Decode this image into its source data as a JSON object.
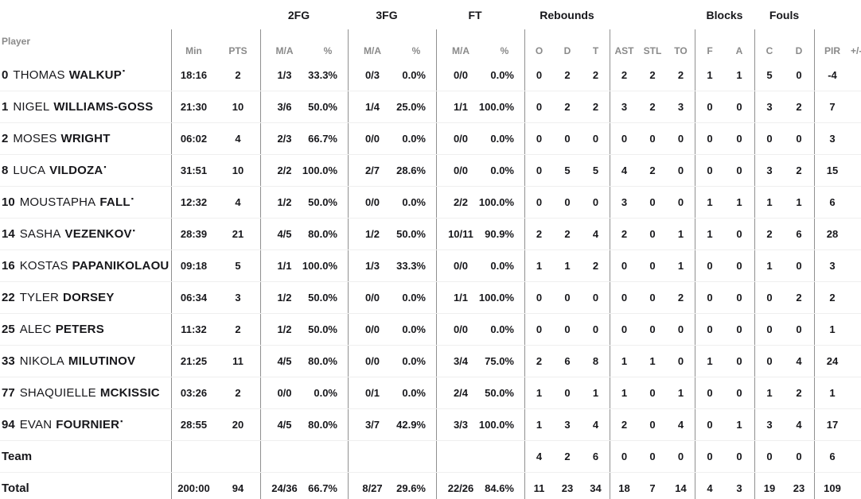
{
  "table": {
    "group_headers": {
      "fg2": "2FG",
      "fg3": "3FG",
      "ft": "FT",
      "rebounds": "Rebounds",
      "blocks": "Blocks",
      "fouls": "Fouls"
    },
    "columns": {
      "player": "Player",
      "min": "Min",
      "pts": "PTS",
      "ma": "M/A",
      "pct": "%",
      "o": "O",
      "d": "D",
      "t": "T",
      "ast": "AST",
      "stl": "STL",
      "to": "TO",
      "f": "F",
      "a": "A",
      "c": "C",
      "pir": "PIR",
      "plusminus": "+/-"
    },
    "starter_marker": "▪",
    "rows": [
      {
        "type": "player",
        "number": "0",
        "first": "THOMAS",
        "last": "WALKUP",
        "starter": true,
        "min": "18:16",
        "pts": "2",
        "fg2_ma": "1/3",
        "fg2_pct": "33.3%",
        "fg3_ma": "0/3",
        "fg3_pct": "0.0%",
        "ft_ma": "0/0",
        "ft_pct": "0.0%",
        "reb_o": "0",
        "reb_d": "2",
        "reb_t": "2",
        "ast": "2",
        "stl": "2",
        "to": "2",
        "blk_f": "1",
        "blk_a": "1",
        "foul_c": "5",
        "foul_d": "0",
        "pir": "-4"
      },
      {
        "type": "player",
        "number": "1",
        "first": "NIGEL",
        "last": "WILLIAMS-GOSS",
        "starter": false,
        "min": "21:30",
        "pts": "10",
        "fg2_ma": "3/6",
        "fg2_pct": "50.0%",
        "fg3_ma": "1/4",
        "fg3_pct": "25.0%",
        "ft_ma": "1/1",
        "ft_pct": "100.0%",
        "reb_o": "0",
        "reb_d": "2",
        "reb_t": "2",
        "ast": "3",
        "stl": "2",
        "to": "3",
        "blk_f": "0",
        "blk_a": "0",
        "foul_c": "3",
        "foul_d": "2",
        "pir": "7"
      },
      {
        "type": "player",
        "number": "2",
        "first": "MOSES",
        "last": "WRIGHT",
        "starter": false,
        "min": "06:02",
        "pts": "4",
        "fg2_ma": "2/3",
        "fg2_pct": "66.7%",
        "fg3_ma": "0/0",
        "fg3_pct": "0.0%",
        "ft_ma": "0/0",
        "ft_pct": "0.0%",
        "reb_o": "0",
        "reb_d": "0",
        "reb_t": "0",
        "ast": "0",
        "stl": "0",
        "to": "0",
        "blk_f": "0",
        "blk_a": "0",
        "foul_c": "0",
        "foul_d": "0",
        "pir": "3"
      },
      {
        "type": "player",
        "number": "8",
        "first": "LUCA",
        "last": "VILDOZA",
        "starter": true,
        "min": "31:51",
        "pts": "10",
        "fg2_ma": "2/2",
        "fg2_pct": "100.0%",
        "fg3_ma": "2/7",
        "fg3_pct": "28.6%",
        "ft_ma": "0/0",
        "ft_pct": "0.0%",
        "reb_o": "0",
        "reb_d": "5",
        "reb_t": "5",
        "ast": "4",
        "stl": "2",
        "to": "0",
        "blk_f": "0",
        "blk_a": "0",
        "foul_c": "3",
        "foul_d": "2",
        "pir": "15"
      },
      {
        "type": "player",
        "number": "10",
        "first": "MOUSTAPHA",
        "last": "FALL",
        "starter": true,
        "min": "12:32",
        "pts": "4",
        "fg2_ma": "1/2",
        "fg2_pct": "50.0%",
        "fg3_ma": "0/0",
        "fg3_pct": "0.0%",
        "ft_ma": "2/2",
        "ft_pct": "100.0%",
        "reb_o": "0",
        "reb_d": "0",
        "reb_t": "0",
        "ast": "3",
        "stl": "0",
        "to": "0",
        "blk_f": "1",
        "blk_a": "1",
        "foul_c": "1",
        "foul_d": "1",
        "pir": "6"
      },
      {
        "type": "player",
        "number": "14",
        "first": "SASHA",
        "last": "VEZENKOV",
        "starter": true,
        "min": "28:39",
        "pts": "21",
        "fg2_ma": "4/5",
        "fg2_pct": "80.0%",
        "fg3_ma": "1/2",
        "fg3_pct": "50.0%",
        "ft_ma": "10/11",
        "ft_pct": "90.9%",
        "reb_o": "2",
        "reb_d": "2",
        "reb_t": "4",
        "ast": "2",
        "stl": "0",
        "to": "1",
        "blk_f": "1",
        "blk_a": "0",
        "foul_c": "2",
        "foul_d": "6",
        "pir": "28"
      },
      {
        "type": "player",
        "number": "16",
        "first": "KOSTAS",
        "last": "PAPANIKOLAOU",
        "starter": false,
        "min": "09:18",
        "pts": "5",
        "fg2_ma": "1/1",
        "fg2_pct": "100.0%",
        "fg3_ma": "1/3",
        "fg3_pct": "33.3%",
        "ft_ma": "0/0",
        "ft_pct": "0.0%",
        "reb_o": "1",
        "reb_d": "1",
        "reb_t": "2",
        "ast": "0",
        "stl": "0",
        "to": "1",
        "blk_f": "0",
        "blk_a": "0",
        "foul_c": "1",
        "foul_d": "0",
        "pir": "3"
      },
      {
        "type": "player",
        "number": "22",
        "first": "TYLER",
        "last": "DORSEY",
        "starter": false,
        "min": "06:34",
        "pts": "3",
        "fg2_ma": "1/2",
        "fg2_pct": "50.0%",
        "fg3_ma": "0/0",
        "fg3_pct": "0.0%",
        "ft_ma": "1/1",
        "ft_pct": "100.0%",
        "reb_o": "0",
        "reb_d": "0",
        "reb_t": "0",
        "ast": "0",
        "stl": "0",
        "to": "2",
        "blk_f": "0",
        "blk_a": "0",
        "foul_c": "0",
        "foul_d": "2",
        "pir": "2"
      },
      {
        "type": "player",
        "number": "25",
        "first": "ALEC",
        "last": "PETERS",
        "starter": false,
        "min": "11:32",
        "pts": "2",
        "fg2_ma": "1/2",
        "fg2_pct": "50.0%",
        "fg3_ma": "0/0",
        "fg3_pct": "0.0%",
        "ft_ma": "0/0",
        "ft_pct": "0.0%",
        "reb_o": "0",
        "reb_d": "0",
        "reb_t": "0",
        "ast": "0",
        "stl": "0",
        "to": "0",
        "blk_f": "0",
        "blk_a": "0",
        "foul_c": "0",
        "foul_d": "0",
        "pir": "1"
      },
      {
        "type": "player",
        "number": "33",
        "first": "NIKOLA",
        "last": "MILUTINOV",
        "starter": false,
        "min": "21:25",
        "pts": "11",
        "fg2_ma": "4/5",
        "fg2_pct": "80.0%",
        "fg3_ma": "0/0",
        "fg3_pct": "0.0%",
        "ft_ma": "3/4",
        "ft_pct": "75.0%",
        "reb_o": "2",
        "reb_d": "6",
        "reb_t": "8",
        "ast": "1",
        "stl": "1",
        "to": "0",
        "blk_f": "1",
        "blk_a": "0",
        "foul_c": "0",
        "foul_d": "4",
        "pir": "24"
      },
      {
        "type": "player",
        "number": "77",
        "first": "SHAQUIELLE",
        "last": "MCKISSIC",
        "starter": false,
        "min": "03:26",
        "pts": "2",
        "fg2_ma": "0/0",
        "fg2_pct": "0.0%",
        "fg3_ma": "0/1",
        "fg3_pct": "0.0%",
        "ft_ma": "2/4",
        "ft_pct": "50.0%",
        "reb_o": "1",
        "reb_d": "0",
        "reb_t": "1",
        "ast": "1",
        "stl": "0",
        "to": "1",
        "blk_f": "0",
        "blk_a": "0",
        "foul_c": "1",
        "foul_d": "2",
        "pir": "1"
      },
      {
        "type": "player",
        "number": "94",
        "first": "EVAN",
        "last": "FOURNIER",
        "starter": true,
        "min": "28:55",
        "pts": "20",
        "fg2_ma": "4/5",
        "fg2_pct": "80.0%",
        "fg3_ma": "3/7",
        "fg3_pct": "42.9%",
        "ft_ma": "3/3",
        "ft_pct": "100.0%",
        "reb_o": "1",
        "reb_d": "3",
        "reb_t": "4",
        "ast": "2",
        "stl": "0",
        "to": "4",
        "blk_f": "0",
        "blk_a": "1",
        "foul_c": "3",
        "foul_d": "4",
        "pir": "17"
      },
      {
        "type": "team",
        "label": "Team",
        "reb_o": "4",
        "reb_d": "2",
        "reb_t": "6",
        "ast": "0",
        "stl": "0",
        "to": "0",
        "blk_f": "0",
        "blk_a": "0",
        "foul_c": "0",
        "foul_d": "0",
        "pir": "6"
      },
      {
        "type": "total",
        "label": "Total",
        "min": "200:00",
        "pts": "94",
        "fg2_ma": "24/36",
        "fg2_pct": "66.7%",
        "fg3_ma": "8/27",
        "fg3_pct": "29.6%",
        "ft_ma": "22/26",
        "ft_pct": "84.6%",
        "reb_o": "11",
        "reb_d": "23",
        "reb_t": "34",
        "ast": "18",
        "stl": "7",
        "to": "14",
        "blk_f": "4",
        "blk_a": "3",
        "foul_c": "19",
        "foul_d": "23",
        "pir": "109"
      }
    ]
  }
}
